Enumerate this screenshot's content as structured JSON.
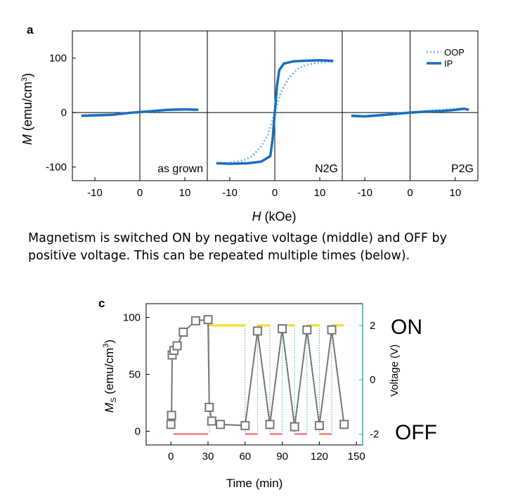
{
  "panel_a": {
    "label": "a",
    "ylabel": "M",
    "ylabel_unit": "(emu/cm",
    "ylabel_sup": "3",
    "ylabel_close": ")",
    "xlabel": "H",
    "xlabel_unit": " (kOe)",
    "legend": [
      {
        "name": "OOP",
        "style": "dotted"
      },
      {
        "name": "IP",
        "style": "solid"
      }
    ]
  },
  "caption": "Magnetism is switched ON by negative voltage (middle) and OFF by positive voltage. This can be repeated multiple times (below).",
  "panel_c": {
    "label": "c",
    "ylabel_main": "M",
    "ylabel_sub": "S",
    "ylabel_unit": " (emu/cm",
    "ylabel_sup": "3",
    "ylabel_close": ")",
    "y2label": "Voltage (V)",
    "xlabel": "Time (min)",
    "on_label": "ON",
    "off_label": "OFF"
  },
  "chart_data": [
    {
      "type": "line",
      "panel": "a",
      "subplot": "as grown",
      "xlim": [
        -15,
        15
      ],
      "ylim": [
        -125,
        150
      ],
      "xticks": [
        -10,
        0,
        10
      ],
      "yticks": [
        -100,
        0,
        100
      ],
      "tick_labels_x": [
        "-10",
        "0",
        "10"
      ],
      "tick_labels_y": [
        "-100",
        "0",
        "100"
      ],
      "series": [
        {
          "name": "IP",
          "style": "solid",
          "color": "#1a6fc0",
          "x": [
            -13,
            -10,
            -6,
            -3,
            0,
            3,
            6,
            10,
            13
          ],
          "y": [
            -6,
            -5,
            -4,
            -1,
            1,
            3,
            5,
            6,
            5
          ]
        },
        {
          "name": "OOP",
          "style": "dotted",
          "color": "#7fb8ea",
          "x": [
            -13,
            -10,
            -6,
            -3,
            0,
            3,
            6,
            10,
            13
          ],
          "y": [
            -5,
            -4,
            -3,
            -1,
            1,
            2,
            4,
            5,
            6
          ]
        }
      ]
    },
    {
      "type": "line",
      "panel": "a",
      "subplot": "N2G",
      "xlim": [
        -15,
        15
      ],
      "ylim": [
        -125,
        150
      ],
      "xticks": [
        -10,
        0,
        10
      ],
      "tick_labels_x": [
        "-10",
        "0",
        "10"
      ],
      "series": [
        {
          "name": "IP",
          "style": "solid",
          "color": "#1a6fc0",
          "x": [
            -13,
            -10,
            -6,
            -3,
            -1,
            -0.5,
            0,
            0.5,
            1,
            2,
            4,
            6,
            10,
            13
          ],
          "y": [
            -93,
            -94,
            -93,
            -90,
            -80,
            -50,
            0,
            50,
            78,
            90,
            94,
            95,
            96,
            95
          ]
        },
        {
          "name": "OOP",
          "style": "dotted",
          "color": "#7fb8ea",
          "x": [
            -13,
            -10,
            -7,
            -5,
            -3,
            -1.5,
            0,
            1.5,
            3,
            5,
            7,
            10,
            13
          ],
          "y": [
            -93,
            -92,
            -88,
            -80,
            -62,
            -40,
            0,
            40,
            62,
            80,
            88,
            92,
            94
          ]
        }
      ]
    },
    {
      "type": "line",
      "panel": "a",
      "subplot": "P2G",
      "xlim": [
        -15,
        15
      ],
      "ylim": [
        -125,
        150
      ],
      "xticks": [
        -10,
        0,
        10
      ],
      "tick_labels_x": [
        "-10",
        "0",
        "10"
      ],
      "series": [
        {
          "name": "IP",
          "style": "solid",
          "color": "#1a6fc0",
          "x": [
            -13,
            -10,
            -7,
            -4,
            0,
            4,
            7,
            10,
            12,
            13
          ],
          "y": [
            -6,
            -7,
            -5,
            -3,
            0,
            2,
            3,
            5,
            7,
            5
          ]
        },
        {
          "name": "OOP",
          "style": "dotted",
          "color": "#7fb8ea",
          "x": [
            -13,
            -10,
            -7,
            -4,
            0,
            4,
            7,
            10,
            12,
            13
          ],
          "y": [
            -5,
            -6,
            -4,
            -2,
            1,
            3,
            5,
            7,
            8,
            6
          ]
        }
      ]
    },
    {
      "type": "line",
      "panel": "c",
      "xlim": [
        -20,
        155
      ],
      "ylim": [
        -12,
        112
      ],
      "xticks": [
        0,
        30,
        60,
        90,
        120,
        150
      ],
      "yticks": [
        0,
        50,
        100
      ],
      "tick_labels_x": [
        "0",
        "30",
        "60",
        "90",
        "120",
        "150"
      ],
      "tick_labels_y": [
        "0",
        "50",
        "100"
      ],
      "y2lim": [
        -2.4,
        2.8
      ],
      "y2ticks": [
        -2,
        0,
        2
      ],
      "tick_labels_y2": [
        "-2",
        "0",
        "2"
      ],
      "series": [
        {
          "name": "Ms",
          "color": "#777777",
          "marker": "square",
          "x": [
            0,
            0.5,
            1,
            2.5,
            5,
            10,
            20,
            30,
            31,
            33,
            40,
            60,
            70,
            80,
            90,
            100,
            110,
            120,
            130,
            140
          ],
          "y": [
            6,
            14,
            67,
            71,
            75,
            87,
            97,
            98,
            21,
            9,
            6,
            5,
            88,
            6,
            90,
            4,
            89,
            5,
            89,
            6
          ]
        }
      ],
      "voltage_segments": [
        {
          "v": -2,
          "start": 2,
          "end": 30,
          "color": "#f08f8f"
        },
        {
          "v": 2,
          "start": 31,
          "end": 60,
          "color": "#f4dc1c"
        },
        {
          "v": -2,
          "start": 60,
          "end": 70,
          "color": "#f08f8f"
        },
        {
          "v": 2,
          "start": 70,
          "end": 80,
          "color": "#f4dc1c"
        },
        {
          "v": -2,
          "start": 80,
          "end": 90,
          "color": "#f08f8f"
        },
        {
          "v": 2,
          "start": 90,
          "end": 100,
          "color": "#f4dc1c"
        },
        {
          "v": -2,
          "start": 100,
          "end": 110,
          "color": "#f08f8f"
        },
        {
          "v": 2,
          "start": 110,
          "end": 120,
          "color": "#f4dc1c"
        },
        {
          "v": -2,
          "start": 120,
          "end": 130,
          "color": "#f08f8f"
        },
        {
          "v": 2,
          "start": 130,
          "end": 140,
          "color": "#f4dc1c"
        }
      ],
      "switch_lines_x": [
        31,
        60,
        70,
        80,
        90,
        100,
        110,
        120,
        130
      ],
      "switch_line_color": "#3aa6a0"
    }
  ]
}
